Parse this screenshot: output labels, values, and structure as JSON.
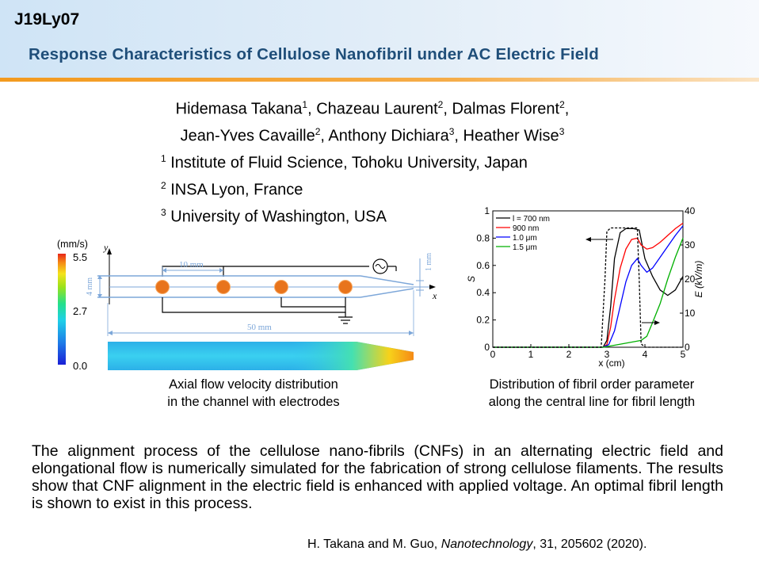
{
  "header": {
    "code": "J19Ly07",
    "title": "Response Characteristics of Cellulose Nanofibril under AC Electric Field"
  },
  "authors": [
    {
      "name": "Hidemasa Takana",
      "sup": "1",
      "sep": ", "
    },
    {
      "name": "Chazeau Laurent",
      "sup": "2",
      "sep": ", "
    },
    {
      "name": "Dalmas Florent",
      "sup": "2",
      "sep": ","
    },
    {
      "name": "Jean-Yves Cavaille",
      "sup": "2",
      "sep": ", "
    },
    {
      "name": "Anthony Dichiara",
      "sup": "3",
      "sep": ", "
    },
    {
      "name": "Heather Wise",
      "sup": "3",
      "sep": ""
    }
  ],
  "affiliations": [
    {
      "sup": "1",
      "text": "Institute of Fluid Science, Tohoku University, Japan"
    },
    {
      "sup": "2",
      "text": "INSA Lyon, France"
    },
    {
      "sup": "3",
      "text": "University of Washington, USA"
    }
  ],
  "figure_left": {
    "colorbar_unit": "(mm/s)",
    "colorbar_ticks": [
      "5.5",
      "2.7",
      "0.0"
    ],
    "dim_electrode_spacing": "10 mm",
    "dim_channel_width": "4 mm",
    "dim_outlet_width": "1 mm",
    "dim_length": "50 mm",
    "axis_x": "x",
    "axis_y": "y",
    "caption_line1": "Axial flow velocity distribution",
    "caption_line2": "in the channel with electrodes",
    "colors": {
      "electrode": "#e8741c",
      "channel_line": "#7da7d9",
      "flow_bulk": "#33c7ee",
      "flow_outlet": "#f7d21a"
    }
  },
  "chart_data": {
    "type": "line",
    "xlabel": "x (cm)",
    "ylabel": "S",
    "y2label": "E (kV/m)",
    "xlim": [
      0,
      5
    ],
    "ylim": [
      0,
      1
    ],
    "y2lim": [
      0,
      40
    ],
    "xticks": [
      "0",
      "1",
      "2",
      "3",
      "4",
      "5"
    ],
    "yticks": [
      "0",
      "0.2",
      "0.4",
      "0.6",
      "0.8",
      "1"
    ],
    "y2ticks": [
      "0",
      "10",
      "20",
      "30",
      "40"
    ],
    "legend_position": "top-left",
    "series": [
      {
        "name": "l = 700 nm",
        "color": "#000000",
        "x": [
          0,
          2.9,
          3.0,
          3.1,
          3.2,
          3.35,
          3.5,
          3.7,
          3.85,
          4.0,
          4.2,
          4.4,
          4.6,
          4.8,
          5.0
        ],
        "y": [
          0,
          0,
          0.05,
          0.3,
          0.65,
          0.84,
          0.87,
          0.87,
          0.86,
          0.65,
          0.52,
          0.42,
          0.38,
          0.42,
          0.52
        ]
      },
      {
        "name": "900 nm",
        "color": "#ff0000",
        "x": [
          0,
          2.9,
          3.0,
          3.1,
          3.2,
          3.35,
          3.5,
          3.65,
          3.8,
          3.9,
          4.05,
          4.2,
          4.4,
          4.6,
          4.8,
          5.0
        ],
        "y": [
          0,
          0,
          0.02,
          0.15,
          0.35,
          0.58,
          0.72,
          0.79,
          0.8,
          0.75,
          0.72,
          0.73,
          0.77,
          0.82,
          0.87,
          0.91
        ]
      },
      {
        "name": "1.0 μm",
        "color": "#0000ff",
        "x": [
          0,
          2.9,
          3.05,
          3.2,
          3.35,
          3.5,
          3.65,
          3.8,
          3.9,
          4.05,
          4.2,
          4.4,
          4.6,
          4.8,
          5.0
        ],
        "y": [
          0,
          0,
          0.02,
          0.12,
          0.3,
          0.48,
          0.6,
          0.65,
          0.6,
          0.55,
          0.58,
          0.66,
          0.74,
          0.82,
          0.89
        ]
      },
      {
        "name": "1.5 μm",
        "color": "#00b000",
        "x": [
          0,
          2.9,
          3.3,
          3.7,
          3.9,
          4.05,
          4.2,
          4.4,
          4.6,
          4.8,
          5.0
        ],
        "y": [
          0,
          0,
          0.02,
          0.04,
          0.05,
          0.08,
          0.18,
          0.32,
          0.5,
          0.66,
          0.8
        ]
      },
      {
        "name": "E",
        "color": "#000000",
        "style": "dashed",
        "axis": "y2",
        "x": [
          0,
          2.85,
          2.95,
          3.0,
          3.1,
          3.5,
          3.8,
          3.85,
          3.9,
          4.0,
          5.0
        ],
        "y": [
          0,
          0,
          20,
          34,
          35,
          35,
          35,
          20,
          1,
          0,
          0
        ]
      }
    ],
    "caption_line1": "Distribution of fibril order parameter",
    "caption_line2": "along the central line for fibril length"
  },
  "abstract": "The alignment process of the cellulose nano-fibrils (CNFs) in an alternating electric field and elongational flow is numerically simulated for the fabrication of strong cellulose filaments. The results show that CNF alignment in the electric field is enhanced with applied voltage. An optimal fibril length is shown to exist in this process.",
  "reference": {
    "authors": "H. Takana and M. Guo, ",
    "journal": "Nanotechnology",
    "details": ", 31, 205602 (2020)."
  }
}
